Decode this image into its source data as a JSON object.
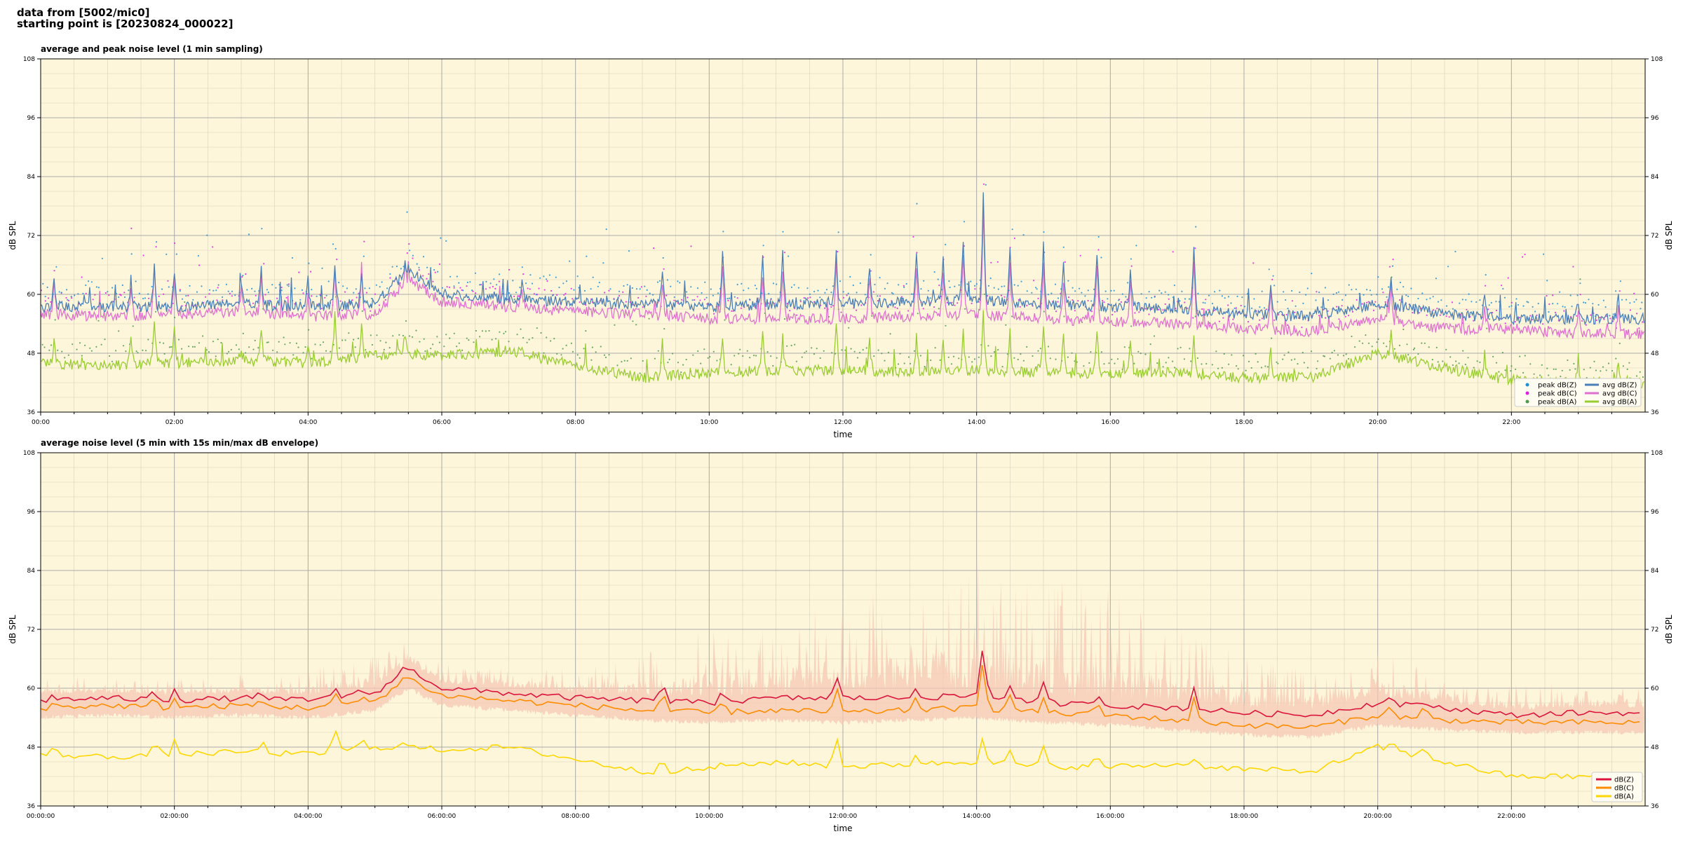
{
  "header": {
    "line1": "data from [5002/mic0]",
    "line2": "starting point is [20230824_000022]"
  },
  "colors": {
    "background": "#fef6da",
    "peak_z": "#1f8fd6",
    "peak_c": "#e020e0",
    "peak_a": "#4f9a4f",
    "avg_z": "#4a7fb8",
    "avg_c": "#e070d0",
    "avg_a": "#9acd32",
    "env_fill": "#f6c8b4",
    "dbz_5min": "#dc143c",
    "dbc_5min": "#ff8c00",
    "dba_5min": "#ffd700"
  },
  "chart_data": [
    {
      "type": "line",
      "title": "average and peak noise level (1 min sampling)",
      "xlabel": "time",
      "ylabel": "dB SPL",
      "ylabel_right": "dB SPL",
      "xlim_hours": [
        0,
        24
      ],
      "ylim": [
        36,
        108
      ],
      "yticks": [
        36,
        48,
        60,
        72,
        84,
        96,
        108
      ],
      "xtick_hours": [
        0,
        2,
        4,
        6,
        8,
        10,
        12,
        14,
        16,
        18,
        20,
        22
      ],
      "xtick_labels": [
        "00:00",
        "02:00",
        "04:00",
        "06:00",
        "08:00",
        "10:00",
        "12:00",
        "14:00",
        "16:00",
        "18:00",
        "20:00",
        "22:00"
      ],
      "grid": true,
      "legend_position": "bottom-right",
      "legend": [
        {
          "label": "peak dB(Z)",
          "kind": "marker",
          "color_key": "peak_z"
        },
        {
          "label": "peak dB(C)",
          "kind": "marker",
          "color_key": "peak_c"
        },
        {
          "label": "peak dB(A)",
          "kind": "marker",
          "color_key": "peak_a"
        },
        {
          "label": "avg dB(Z)",
          "kind": "line",
          "color_key": "avg_z"
        },
        {
          "label": "avg dB(C)",
          "kind": "line",
          "color_key": "avg_c"
        },
        {
          "label": "avg dB(A)",
          "kind": "line",
          "color_key": "avg_a"
        }
      ],
      "baseline_hours": [
        0,
        1,
        2,
        3,
        4,
        5,
        5.5,
        6,
        7,
        8,
        9,
        10,
        11,
        12,
        13,
        14,
        15,
        16,
        17,
        18,
        19,
        20,
        21,
        22,
        23,
        24
      ],
      "avg_z": [
        57.5,
        57.5,
        57.5,
        58,
        57.5,
        58,
        65,
        60,
        59,
        58.5,
        58,
        57.5,
        58,
        58,
        58.5,
        59,
        58,
        57.5,
        57,
        56,
        55.5,
        58,
        56,
        55,
        55,
        55
      ],
      "avg_c": [
        56,
        55.5,
        56,
        56.5,
        55.5,
        56,
        63,
        58.5,
        57.5,
        56.5,
        56,
        55,
        55,
        55,
        55.5,
        56,
        55,
        54.5,
        54,
        53,
        52.5,
        55,
        53,
        53,
        52,
        52
      ],
      "avg_a": [
        46,
        45.5,
        46,
        46.5,
        46,
        47.5,
        48,
        47.5,
        48.5,
        45.5,
        43,
        44,
        44.5,
        44.5,
        44,
        44.5,
        44,
        44,
        44,
        43,
        43,
        48,
        45,
        42.5,
        42,
        42
      ],
      "spikes": [
        {
          "h": 0.2,
          "z": 63,
          "c": 62,
          "a": 50
        },
        {
          "h": 1.35,
          "z": 63,
          "c": 61,
          "a": 52
        },
        {
          "h": 1.7,
          "z": 66,
          "c": 65,
          "a": 55
        },
        {
          "h": 2.0,
          "z": 65,
          "c": 64,
          "a": 54
        },
        {
          "h": 3.0,
          "z": 63,
          "c": 62,
          "a": 49
        },
        {
          "h": 3.3,
          "z": 65,
          "c": 64,
          "a": 53
        },
        {
          "h": 4.0,
          "z": 63,
          "c": 61,
          "a": 50
        },
        {
          "h": 4.4,
          "z": 66,
          "c": 64,
          "a": 57
        },
        {
          "h": 4.8,
          "z": 64,
          "c": 63,
          "a": 54
        },
        {
          "h": 5.45,
          "z": 67,
          "c": 65,
          "a": 52
        },
        {
          "h": 7.2,
          "z": 63,
          "c": 61,
          "a": 50
        },
        {
          "h": 9.3,
          "z": 65,
          "c": 63,
          "a": 50
        },
        {
          "h": 10.2,
          "z": 69,
          "c": 66,
          "a": 51
        },
        {
          "h": 10.8,
          "z": 67,
          "c": 64,
          "a": 52
        },
        {
          "h": 11.1,
          "z": 68,
          "c": 65,
          "a": 51
        },
        {
          "h": 11.9,
          "z": 70,
          "c": 67,
          "a": 55
        },
        {
          "h": 12.4,
          "z": 66,
          "c": 64,
          "a": 51
        },
        {
          "h": 13.1,
          "z": 69,
          "c": 66,
          "a": 52
        },
        {
          "h": 13.5,
          "z": 67,
          "c": 64,
          "a": 51
        },
        {
          "h": 13.8,
          "z": 71,
          "c": 68,
          "a": 53
        },
        {
          "h": 14.1,
          "z": 81,
          "c": 78,
          "a": 56
        },
        {
          "h": 14.5,
          "z": 70,
          "c": 66,
          "a": 52
        },
        {
          "h": 15.0,
          "z": 70,
          "c": 67,
          "a": 54
        },
        {
          "h": 15.3,
          "z": 66,
          "c": 63,
          "a": 52
        },
        {
          "h": 15.8,
          "z": 69,
          "c": 66,
          "a": 53
        },
        {
          "h": 16.3,
          "z": 65,
          "c": 62,
          "a": 50
        },
        {
          "h": 17.25,
          "z": 70,
          "c": 67,
          "a": 52
        },
        {
          "h": 18.4,
          "z": 62,
          "c": 60,
          "a": 49
        },
        {
          "h": 20.2,
          "z": 64,
          "c": 62,
          "a": 53
        },
        {
          "h": 21.6,
          "z": 60,
          "c": 58,
          "a": 48
        },
        {
          "h": 23.0,
          "z": 59,
          "c": 57,
          "a": 47
        },
        {
          "h": 23.6,
          "z": 60,
          "c": 58,
          "a": 47
        }
      ]
    },
    {
      "type": "line",
      "title": "average noise level (5 min with 15s min/max dB envelope)",
      "xlabel": "time",
      "ylabel": "dB SPL",
      "ylabel_right": "dB SPL",
      "xlim_hours": [
        0,
        24
      ],
      "ylim": [
        36,
        108
      ],
      "yticks": [
        36,
        48,
        60,
        72,
        84,
        96,
        108
      ],
      "xtick_hours": [
        0,
        2,
        4,
        6,
        8,
        10,
        12,
        14,
        16,
        18,
        20,
        22
      ],
      "xtick_labels": [
        "00:00:00",
        "02:00:00",
        "04:00:00",
        "06:00:00",
        "08:00:00",
        "10:00:00",
        "12:00:00",
        "14:00:00",
        "16:00:00",
        "18:00:00",
        "20:00:00",
        "22:00:00"
      ],
      "grid": true,
      "legend_position": "bottom-right",
      "legend": [
        {
          "label": "dB(Z)",
          "color_key": "dbz_5min"
        },
        {
          "label": "dB(C)",
          "color_key": "dbc_5min"
        },
        {
          "label": "dB(A)",
          "color_key": "dba_5min"
        }
      ],
      "baseline_hours": [
        0,
        1,
        2,
        3,
        4,
        5,
        5.5,
        6,
        7,
        8,
        9,
        10,
        11,
        12,
        13,
        14,
        15,
        16,
        17,
        18,
        19,
        20,
        21,
        22,
        23,
        24
      ],
      "db_z": [
        57.5,
        58,
        57.5,
        58,
        57.5,
        59,
        64,
        60,
        59,
        58,
        57.5,
        57,
        58,
        58,
        58,
        58.5,
        57,
        56.5,
        56,
        55,
        54.5,
        57,
        56,
        54.5,
        55,
        55
      ],
      "db_c": [
        56,
        56.5,
        56,
        56.5,
        56,
        57.5,
        62,
        58.5,
        57.5,
        56.5,
        55.5,
        55,
        55.5,
        55,
        55.5,
        56,
        55,
        54.5,
        53.5,
        52.5,
        52,
        54.5,
        53.5,
        53,
        53,
        53
      ],
      "db_a": [
        46.5,
        46,
        46.5,
        47,
        46.5,
        48,
        48,
        47.5,
        48,
        45.5,
        43,
        43.5,
        45,
        44,
        44.5,
        45,
        44,
        44,
        44.5,
        43.5,
        43,
        48,
        45,
        42,
        42,
        42
      ],
      "envelope_max": [
        62,
        61,
        61,
        62,
        63,
        66,
        70,
        64,
        63,
        63,
        66,
        72,
        75,
        78,
        80,
        86,
        82,
        80,
        72,
        66,
        63,
        68,
        62,
        60,
        60,
        59
      ],
      "spikes": [
        {
          "h": 0.2,
          "z": 59,
          "c": 57,
          "a": 48
        },
        {
          "h": 1.7,
          "z": 60,
          "c": 58,
          "a": 50
        },
        {
          "h": 2.0,
          "z": 60,
          "c": 58,
          "a": 49
        },
        {
          "h": 3.3,
          "z": 60,
          "c": 58,
          "a": 50
        },
        {
          "h": 4.4,
          "z": 61,
          "c": 59,
          "a": 53
        },
        {
          "h": 4.8,
          "z": 60,
          "c": 58,
          "a": 50
        },
        {
          "h": 5.45,
          "z": 64.5,
          "c": 62.5,
          "a": 49
        },
        {
          "h": 9.3,
          "z": 63,
          "c": 61,
          "a": 47
        },
        {
          "h": 10.2,
          "z": 61,
          "c": 58,
          "a": 46
        },
        {
          "h": 11.9,
          "z": 63,
          "c": 61,
          "a": 52
        },
        {
          "h": 13.1,
          "z": 61,
          "c": 59,
          "a": 47
        },
        {
          "h": 14.1,
          "z": 71,
          "c": 68,
          "a": 52
        },
        {
          "h": 14.5,
          "z": 61,
          "c": 59,
          "a": 47
        },
        {
          "h": 15.0,
          "z": 61,
          "c": 58,
          "a": 48
        },
        {
          "h": 15.8,
          "z": 60,
          "c": 58,
          "a": 47
        },
        {
          "h": 17.25,
          "z": 60,
          "c": 58,
          "a": 46
        },
        {
          "h": 20.2,
          "z": 59,
          "c": 57,
          "a": 50
        },
        {
          "h": 20.7,
          "z": 58,
          "c": 57,
          "a": 49
        }
      ]
    }
  ]
}
